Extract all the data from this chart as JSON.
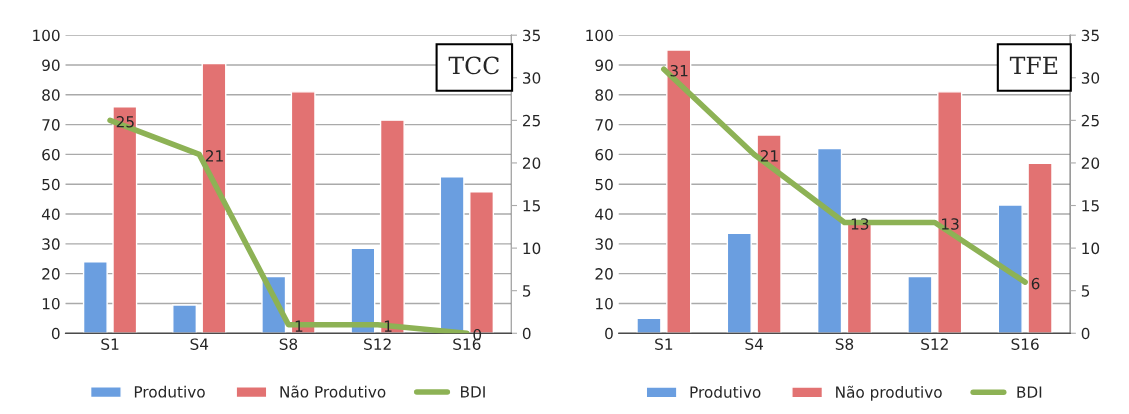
{
  "chart_data": [
    {
      "type": "bar",
      "title": "TCC",
      "categories": [
        "S1",
        "S4",
        "S8",
        "S12",
        "S16"
      ],
      "series": [
        {
          "name": "Produtivo",
          "color": "#6a9ee0",
          "values": [
            24,
            9.5,
            19,
            28.5,
            52.5
          ]
        },
        {
          "name": "Não Produtivo",
          "color": "#e27272",
          "values": [
            76,
            90.5,
            81,
            71.5,
            47.5
          ]
        },
        {
          "name": "BDI",
          "type": "line",
          "axis": "y2",
          "color": "#8db255",
          "values": [
            25,
            21,
            1,
            1,
            0
          ],
          "value_labels": [
            "25",
            "21",
            "1",
            "1",
            "0"
          ]
        }
      ],
      "ylim": [
        0,
        100
      ],
      "yticks": [
        0,
        10,
        20,
        30,
        40,
        50,
        60,
        70,
        80,
        90,
        100
      ],
      "y2lim": [
        0,
        35
      ],
      "y2ticks": [
        0,
        5,
        10,
        15,
        20,
        25,
        30,
        35
      ],
      "grid": "y",
      "legend": "bottom",
      "marker": "none",
      "line_style": "solid"
    },
    {
      "type": "bar",
      "title": "TFE",
      "categories": [
        "S1",
        "S4",
        "S8",
        "S12",
        "S16"
      ],
      "series": [
        {
          "name": "Produtivo",
          "color": "#6a9ee0",
          "values": [
            5,
            33.5,
            62,
            19,
            43
          ]
        },
        {
          "name": "Não produtivo",
          "color": "#e27272",
          "values": [
            95,
            66.5,
            37,
            81,
            57
          ]
        },
        {
          "name": "BDI",
          "type": "line",
          "axis": "y2",
          "color": "#8db255",
          "values": [
            31,
            21,
            13,
            13,
            6
          ],
          "value_labels": [
            "31",
            "21",
            "13",
            "13",
            "6"
          ]
        }
      ],
      "ylim": [
        0,
        100
      ],
      "yticks": [
        0,
        10,
        20,
        30,
        40,
        50,
        60,
        70,
        80,
        90,
        100
      ],
      "y2lim": [
        0,
        35
      ],
      "y2ticks": [
        0,
        5,
        10,
        15,
        20,
        25,
        30,
        35
      ],
      "grid": "y",
      "legend": "bottom",
      "marker": "none",
      "line_style": "solid"
    }
  ]
}
